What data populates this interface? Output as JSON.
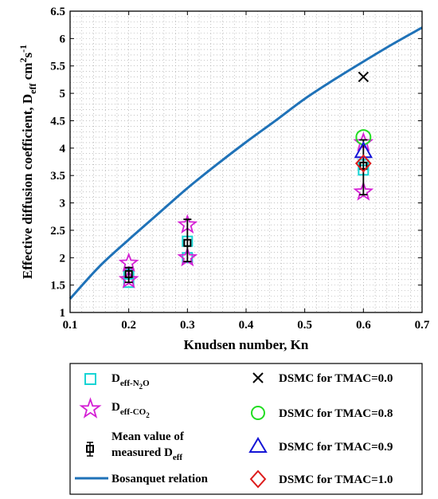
{
  "chart_data": {
    "type": "scatter",
    "xlabel": "Knudsen number, Kn",
    "ylabel": {
      "main": "Effective diffusion coefficient, D",
      "sub": "eff",
      "unit": " cm",
      "unit_sup": "2",
      "unit_s": "s",
      "unit_s_sup": "-1"
    },
    "xlim": [
      0.1,
      0.7
    ],
    "ylim": [
      1,
      6.5
    ],
    "xticks": [
      0.1,
      0.2,
      0.3,
      0.4,
      0.5,
      0.6,
      0.7
    ],
    "xtick_labels": [
      "0.1",
      "0.2",
      "0.3",
      "0.4",
      "0.5",
      "0.6",
      "0.7"
    ],
    "yticks": [
      1,
      1.5,
      2,
      2.5,
      3,
      3.5,
      4,
      4.5,
      5,
      5.5,
      6,
      6.5
    ],
    "ytick_labels": [
      "1",
      "1.5",
      "2",
      "2.5",
      "3",
      "3.5",
      "4",
      "4.5",
      "5",
      "5.5",
      "6",
      "6.5"
    ],
    "grid": "minor dotted",
    "legend_position": "bottom",
    "series": [
      {
        "name": "D_eff-N2O",
        "marker": "square",
        "color": "#17d4d4",
        "points": [
          [
            0.2,
            1.55
          ],
          [
            0.2,
            1.7
          ],
          [
            0.3,
            2.0
          ],
          [
            0.3,
            2.3
          ],
          [
            0.6,
            3.6
          ],
          [
            0.6,
            3.7
          ]
        ]
      },
      {
        "name": "D_eff-CO2",
        "marker": "star",
        "color": "#d41fd4",
        "points": [
          [
            0.2,
            1.6
          ],
          [
            0.2,
            1.9
          ],
          [
            0.3,
            2.0
          ],
          [
            0.3,
            2.6
          ],
          [
            0.6,
            3.2
          ],
          [
            0.6,
            4.1
          ]
        ]
      },
      {
        "name": "Mean value of measured D_eff",
        "marker": "errorbar-square",
        "color": "#000000",
        "points": [
          {
            "x": 0.2,
            "y": 1.7,
            "low": 1.55,
            "high": 1.82
          },
          {
            "x": 0.3,
            "y": 2.27,
            "low": 1.93,
            "high": 2.7
          },
          {
            "x": 0.6,
            "y": 3.68,
            "low": 3.15,
            "high": 4.15
          }
        ]
      },
      {
        "name": "DSMC for TMAC=0.0",
        "marker": "x",
        "color": "#000000",
        "points": [
          [
            0.6,
            5.3
          ]
        ]
      },
      {
        "name": "DSMC for TMAC=0.8",
        "marker": "circle",
        "color": "#22dd22",
        "points": [
          [
            0.6,
            4.2
          ]
        ]
      },
      {
        "name": "DSMC for TMAC=0.9",
        "marker": "triangle",
        "color": "#1515d6",
        "points": [
          [
            0.6,
            3.95
          ]
        ]
      },
      {
        "name": "DSMC for TMAC=1.0",
        "marker": "diamond",
        "color": "#dd1b1b",
        "points": [
          [
            0.6,
            3.72
          ]
        ]
      },
      {
        "name": "Bosanquet relation",
        "marker": "line",
        "color": "#1f72b8",
        "points": [
          [
            0.1,
            1.25
          ],
          [
            0.15,
            1.84
          ],
          [
            0.2,
            2.33
          ],
          [
            0.25,
            2.8
          ],
          [
            0.3,
            3.27
          ],
          [
            0.35,
            3.7
          ],
          [
            0.4,
            4.11
          ],
          [
            0.45,
            4.5
          ],
          [
            0.5,
            4.9
          ],
          [
            0.55,
            5.25
          ],
          [
            0.6,
            5.58
          ],
          [
            0.65,
            5.9
          ],
          [
            0.7,
            6.2
          ]
        ]
      }
    ]
  },
  "legend": {
    "n2o": {
      "main": "D",
      "sub_a": "eff-N",
      "sub_b": "2",
      "sub_c": "O"
    },
    "co2": {
      "main": "D",
      "sub_a": "eff-CO",
      "sub_b": "2"
    },
    "mean": {
      "line1": "Mean value of",
      "line2_main": "measured D",
      "line2_sub": "eff"
    },
    "bosanquet": "Bosanquet relation",
    "tmac00": "DSMC for TMAC=0.0",
    "tmac08": "DSMC for TMAC=0.8",
    "tmac09": "DSMC for TMAC=0.9",
    "tmac10": "DSMC for TMAC=1.0"
  }
}
